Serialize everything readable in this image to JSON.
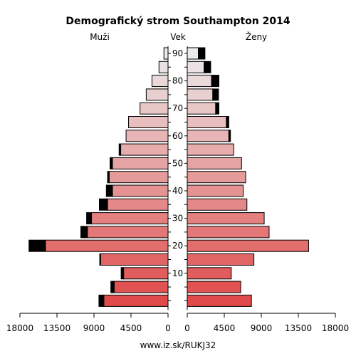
{
  "chart_data": {
    "type": "bar",
    "title": "Demografický strom Southampton 2014",
    "left_label": "Muži",
    "center_label": "Vek",
    "right_label": "Ženy",
    "footer": "www.iz.sk/RUKJ32",
    "age_tick_labels": [
      "10",
      "20",
      "30",
      "40",
      "50",
      "60",
      "70",
      "80",
      "90"
    ],
    "x_tick_labels_left": [
      "18000",
      "13500",
      "9000",
      "4500",
      "0"
    ],
    "x_tick_labels_right": [
      "0",
      "4500",
      "9000",
      "13500",
      "18000"
    ],
    "xlim": [
      0,
      18000
    ],
    "age_groups": [
      "0-4",
      "5-9",
      "10-14",
      "15-19",
      "20-24",
      "25-29",
      "30-34",
      "35-39",
      "40-44",
      "45-49",
      "50-54",
      "55-59",
      "60-64",
      "65-69",
      "70-74",
      "75-79",
      "80-84",
      "85-89",
      "90+"
    ],
    "series": [
      {
        "side": "male",
        "values": [
          7800,
          6550,
          5400,
          8200,
          14900,
          9800,
          9300,
          7350,
          6750,
          7150,
          6750,
          5750,
          5100,
          4800,
          3400,
          2650,
          1950,
          1100,
          500
        ],
        "excess": [
          600,
          400,
          300,
          100,
          2000,
          800,
          600,
          1000,
          750,
          200,
          300,
          200,
          0,
          0,
          0,
          0,
          0,
          0,
          0
        ]
      },
      {
        "side": "female",
        "values": [
          7800,
          6500,
          5350,
          8100,
          14750,
          9950,
          9350,
          7250,
          6800,
          7100,
          6600,
          5650,
          5050,
          4750,
          3450,
          3100,
          2950,
          2050,
          1350
        ],
        "excess": [
          0,
          0,
          0,
          0,
          0,
          0,
          0,
          0,
          0,
          0,
          0,
          0,
          200,
          300,
          400,
          700,
          900,
          800,
          800
        ]
      }
    ],
    "colors": {
      "male_gradient": [
        "#e04a4a",
        "#ebebeb"
      ],
      "female_gradient": [
        "#e04a4a",
        "#ebebeb"
      ],
      "excess": "#000000"
    }
  }
}
